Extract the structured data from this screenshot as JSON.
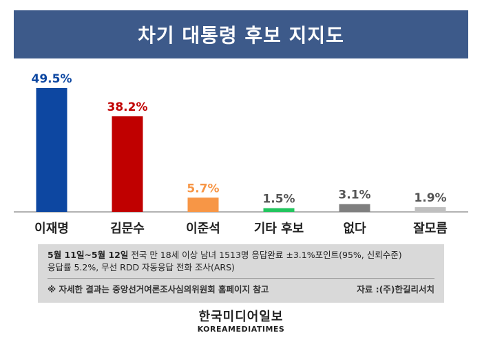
{
  "title": "차기 대통령 후보 지지도",
  "chart_data": {
    "type": "bar",
    "title": "차기 대통령 후보 지지도",
    "categories": [
      "이재명",
      "김문수",
      "이준석",
      "기타 후보",
      "없다",
      "잘모름"
    ],
    "values": [
      49.5,
      38.2,
      5.7,
      1.5,
      3.1,
      1.9
    ],
    "value_labels": [
      "49.5%",
      "38.2%",
      "5.7%",
      "1.5%",
      "3.1%",
      "1.9%"
    ],
    "colors": [
      "#0d47a1",
      "#c00000",
      "#f79646",
      "#22c55e",
      "#7f7f7f",
      "#bfbfbf"
    ],
    "label_colors": [
      "#0d47a1",
      "#c00000",
      "#f79646",
      "#555555",
      "#555555",
      "#555555"
    ],
    "ylim": [
      0,
      49.5
    ],
    "grid": false,
    "legend": "none"
  },
  "note": {
    "date": "5월 11일~5월 12일",
    "line1_rest": " 전국 만 18세 이상 남녀 1513명 응답완료 ±3.1%포인트(95%, 신뢰수준)",
    "line2": "응답률 5.2%, 무선 RDD 자동응답 전화 조사(ARS)",
    "footnote": "※ 자세한 결과는 중앙선거여론조사심의위원회 홈페이지 참고",
    "source": "자료 :(주)한길리서치"
  },
  "logo": {
    "korean": "한국미디어일보",
    "english": "KOREAMEDIATIMES"
  }
}
